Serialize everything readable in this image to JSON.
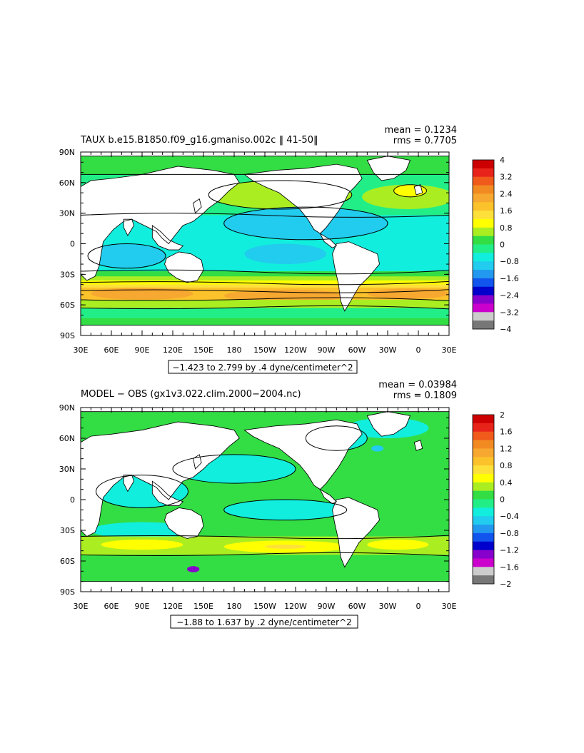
{
  "panels": [
    {
      "title": "TAUX b.e15.B1850.f09_g16.gmaniso.002c ‖ 41-50‖",
      "stats": {
        "mean": "mean = 0.1234",
        "rms": "rms = 0.7705"
      },
      "range_label": "−1.423 to 2.799 by .4 dyne/centimeter^2",
      "lat_labels": [
        "90N",
        "60N",
        "30N",
        "0",
        "30S",
        "60S",
        "90S"
      ],
      "lon_labels": [
        "30E",
        "60E",
        "90E",
        "120E",
        "150E",
        "180",
        "150W",
        "120W",
        "90W",
        "60W",
        "30W",
        "0",
        "30E"
      ],
      "colorbar": {
        "labels": [
          "4",
          "3.2",
          "2.4",
          "1.6",
          "0.8",
          "0",
          "−0.8",
          "−1.6",
          "−2.4",
          "−3.2",
          "−4"
        ],
        "colors": [
          "#cc0000",
          "#e8231a",
          "#f05a1a",
          "#f28a22",
          "#f7a830",
          "#fbc22b",
          "#fee03a",
          "#ffff00",
          "#aaee22",
          "#33dd44",
          "#22ee88",
          "#11eedd",
          "#22ccee",
          "#2299ee",
          "#1155ee",
          "#0000cc",
          "#8800cc",
          "#cc00cc",
          "#cccccc",
          "#777777"
        ]
      }
    },
    {
      "title": "MODEL − OBS (gx1v3.022.clim.2000−2004.nc)",
      "stats": {
        "mean": "mean = 0.03984",
        "rms": "rms = 0.1809"
      },
      "range_label": "−1.88 to 1.637 by .2 dyne/centimeter^2",
      "lat_labels": [
        "90N",
        "60N",
        "30N",
        "0",
        "30S",
        "60S",
        "90S"
      ],
      "lon_labels": [
        "30E",
        "60E",
        "90E",
        "120E",
        "150E",
        "180",
        "150W",
        "120W",
        "90W",
        "60W",
        "30W",
        "0",
        "30E"
      ],
      "colorbar": {
        "labels": [
          "2",
          "1.6",
          "1.2",
          "0.8",
          "0.4",
          "0",
          "−0.4",
          "−0.8",
          "−1.2",
          "−1.6",
          "−2"
        ],
        "colors": [
          "#cc0000",
          "#e8231a",
          "#f05a1a",
          "#f28a22",
          "#f7a830",
          "#fbc22b",
          "#fee03a",
          "#ffff00",
          "#aaee22",
          "#33dd44",
          "#22ee88",
          "#11eedd",
          "#22ccee",
          "#2299ee",
          "#1155ee",
          "#0000cc",
          "#8800cc",
          "#cc00cc",
          "#cccccc",
          "#777777"
        ]
      }
    }
  ]
}
